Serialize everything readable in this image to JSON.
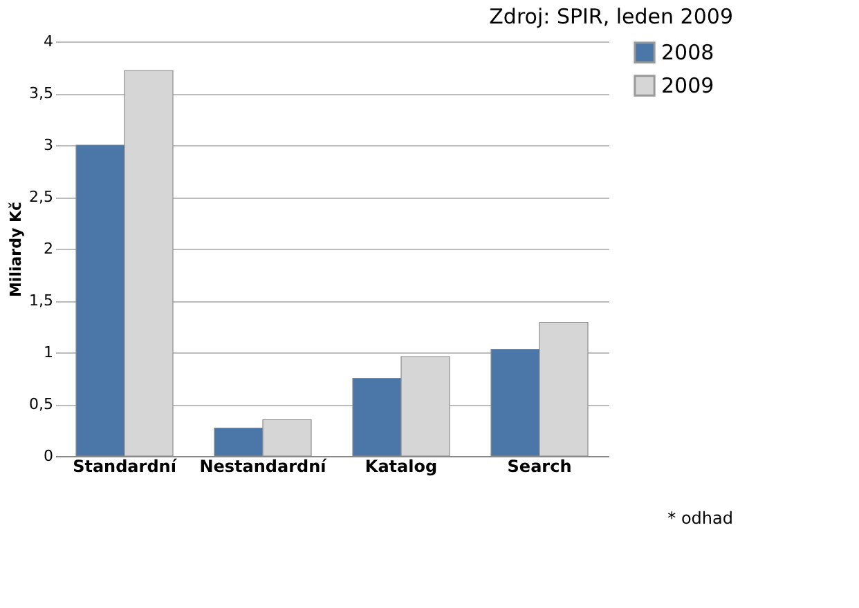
{
  "chart_data": {
    "type": "bar",
    "title": "Zdroj: SPIR, leden 2009",
    "ylabel": "Miliardy Kč",
    "categories": [
      "Standardní",
      "Nestandardní",
      "Katalog",
      "Search"
    ],
    "series": [
      {
        "name": "2008",
        "color": "#4a76a8",
        "values": [
          3.0,
          0.27,
          0.75,
          1.03
        ]
      },
      {
        "name": "2009",
        "color": "#d6d6d6",
        "values": [
          3.72,
          0.35,
          0.96,
          1.29
        ]
      }
    ],
    "ylim": [
      0,
      4
    ],
    "yticks": [
      0,
      {
        "value": 0.5,
        "label": "0,5"
      },
      1,
      {
        "value": 1.5,
        "label": "1,5"
      },
      2,
      {
        "value": 2.5,
        "label": "2,5"
      },
      3,
      {
        "value": 3.5,
        "label": "3,5"
      },
      4
    ],
    "grid": "y",
    "legend": "right",
    "annotations": [
      "* odhad"
    ]
  }
}
